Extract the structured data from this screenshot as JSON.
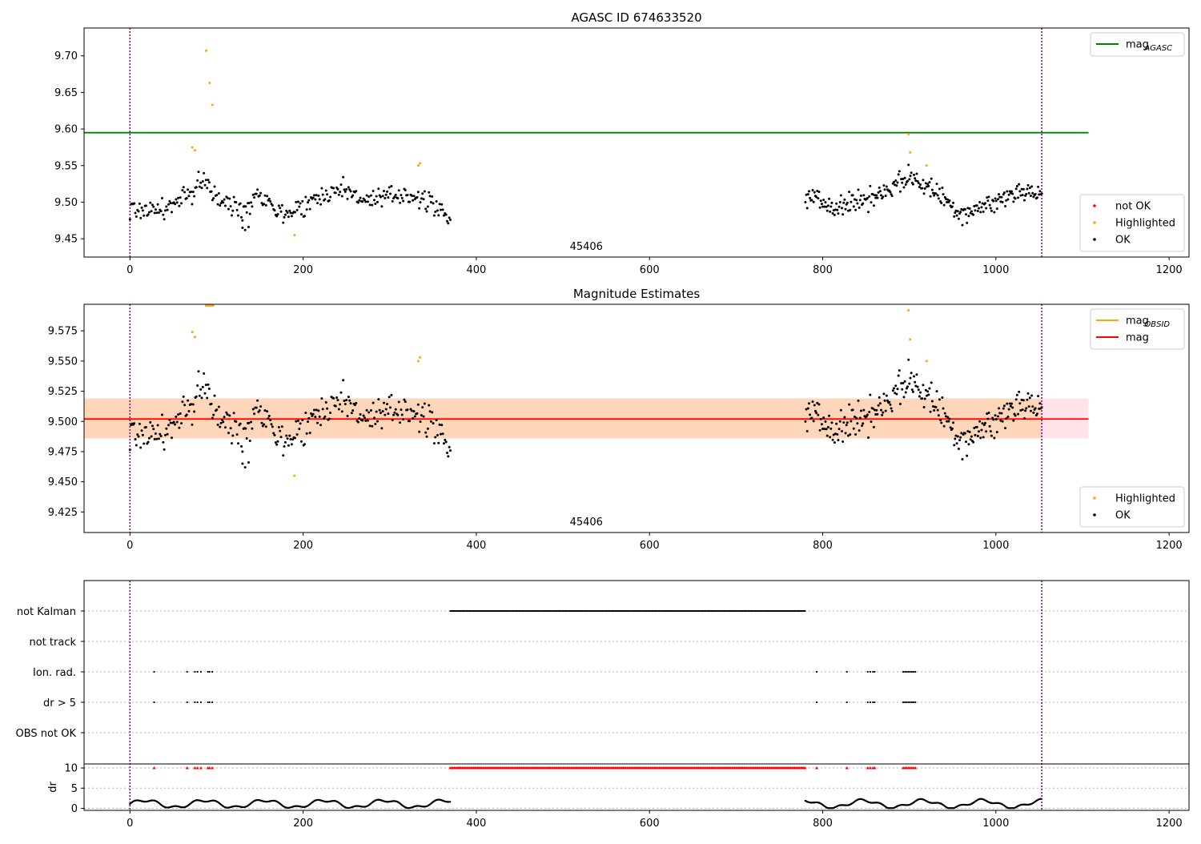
{
  "chart_data": [
    {
      "type": "scatter",
      "title": "AGASC ID 674633520",
      "xlim": [
        -53,
        1223
      ],
      "ylim": [
        9.425,
        9.738
      ],
      "xticks": [
        0,
        200,
        400,
        600,
        800,
        1000,
        1200
      ],
      "yticks": [
        9.45,
        9.5,
        9.55,
        9.6,
        9.65,
        9.7
      ],
      "ytick_decimals": 2,
      "vlines": [
        0,
        1053
      ],
      "annotation": {
        "text": "45406",
        "x": 527
      },
      "series": [
        {
          "name": "mag_AGASC",
          "kind": "hline",
          "y": 9.595,
          "x0": -53,
          "x1": 1107,
          "color": "#008000"
        },
        {
          "name": "not OK",
          "kind": "points",
          "color": "#ff0000",
          "points": []
        },
        {
          "name": "Highlighted",
          "kind": "points",
          "color": "#ffa500",
          "points": [
            [
              88,
              9.707
            ],
            [
              92,
              9.663
            ],
            [
              95,
              9.633
            ],
            [
              72,
              9.575
            ],
            [
              75,
              9.571
            ],
            [
              333,
              9.55
            ],
            [
              335,
              9.553
            ],
            [
              190,
              9.455
            ],
            [
              899,
              9.593
            ],
            [
              901,
              9.568
            ],
            [
              920,
              9.55
            ]
          ]
        },
        {
          "name": "OK",
          "kind": "points",
          "color": "#000000",
          "segments": [
            {
              "x0": 0,
              "x1": 370,
              "n": 300,
              "anchors": [
                [
                  0,
                  9.49
                ],
                [
                  40,
                  9.49
                ],
                [
                  70,
                  9.51
                ],
                [
                  85,
                  9.535
                ],
                [
                  100,
                  9.503
                ],
                [
                  130,
                  9.49
                ],
                [
                  150,
                  9.515
                ],
                [
                  175,
                  9.483
                ],
                [
                  200,
                  9.495
                ],
                [
                  240,
                  9.52
                ],
                [
                  280,
                  9.5
                ],
                [
                  320,
                  9.513
                ],
                [
                  350,
                  9.495
                ],
                [
                  370,
                  9.483
                ]
              ],
              "spread": 0.011
            },
            {
              "x0": 780,
              "x1": 1053,
              "n": 260,
              "anchors": [
                [
                  780,
                  9.505
                ],
                [
                  820,
                  9.495
                ],
                [
                  860,
                  9.508
                ],
                [
                  900,
                  9.535
                ],
                [
                  930,
                  9.515
                ],
                [
                  960,
                  9.485
                ],
                [
                  1000,
                  9.5
                ],
                [
                  1030,
                  9.517
                ],
                [
                  1053,
                  9.51
                ]
              ],
              "spread": 0.011
            }
          ],
          "extra": [
            [
              130,
              9.465
            ],
            [
              133,
              9.462
            ],
            [
              137,
              9.466
            ]
          ]
        }
      ],
      "legends": [
        {
          "position": "top-right",
          "entries": [
            {
              "label": "mag",
              "sub": "AGASC",
              "kind": "line",
              "color": "#008000"
            }
          ]
        },
        {
          "position": "bottom-right",
          "entries": [
            {
              "label": "not OK",
              "kind": "point",
              "color": "#ff0000"
            },
            {
              "label": "Highlighted",
              "kind": "point",
              "color": "#ffa500"
            },
            {
              "label": "OK",
              "kind": "point",
              "color": "#000000"
            }
          ]
        }
      ]
    },
    {
      "type": "scatter",
      "title": "Magnitude Estimates",
      "xlim": [
        -53,
        1223
      ],
      "ylim": [
        9.408,
        9.597
      ],
      "xticks": [
        0,
        200,
        400,
        600,
        800,
        1000,
        1200
      ],
      "yticks": [
        9.425,
        9.45,
        9.475,
        9.5,
        9.525,
        9.55,
        9.575
      ],
      "ytick_decimals": 3,
      "vlines": [
        0,
        1053
      ],
      "annotation": {
        "text": "45406",
        "x": 527
      },
      "bands": [
        {
          "x0": -53,
          "x1": 1107,
          "y0": 9.486,
          "y1": 9.519,
          "color": "#ffc0cb",
          "opacity": 0.45
        },
        {
          "x0": -53,
          "x1": 1053,
          "y0": 9.486,
          "y1": 9.519,
          "color": "#ffa500",
          "opacity": 0.2
        }
      ],
      "series": [
        {
          "name": "mag_OBSID",
          "kind": "hline",
          "y": 9.502,
          "x0": -53,
          "x1": 1053,
          "color": "#ffa500"
        },
        {
          "name": "mag",
          "kind": "hline",
          "y": 9.502,
          "x0": -53,
          "x1": 1107,
          "color": "#ff0000"
        },
        {
          "name": "Highlighted",
          "kind": "points",
          "color": "#ffa500",
          "points": [
            [
              88,
              9.596
            ],
            [
              90,
              9.596
            ],
            [
              92,
              9.596
            ],
            [
              94,
              9.596
            ],
            [
              96,
              9.596
            ],
            [
              72,
              9.574
            ],
            [
              75,
              9.57
            ],
            [
              333,
              9.55
            ],
            [
              335,
              9.553
            ],
            [
              190,
              9.455
            ],
            [
              899,
              9.592
            ],
            [
              901,
              9.568
            ],
            [
              920,
              9.55
            ]
          ]
        },
        {
          "name": "OK",
          "kind": "points",
          "color": "#000000",
          "segments": [
            {
              "x0": 0,
              "x1": 370,
              "n": 300,
              "anchors": [
                [
                  0,
                  9.49
                ],
                [
                  40,
                  9.49
                ],
                [
                  70,
                  9.51
                ],
                [
                  85,
                  9.535
                ],
                [
                  100,
                  9.503
                ],
                [
                  130,
                  9.49
                ],
                [
                  150,
                  9.515
                ],
                [
                  175,
                  9.483
                ],
                [
                  200,
                  9.495
                ],
                [
                  240,
                  9.52
                ],
                [
                  280,
                  9.5
                ],
                [
                  320,
                  9.513
                ],
                [
                  350,
                  9.495
                ],
                [
                  370,
                  9.483
                ]
              ],
              "spread": 0.011
            },
            {
              "x0": 780,
              "x1": 1053,
              "n": 260,
              "anchors": [
                [
                  780,
                  9.505
                ],
                [
                  820,
                  9.495
                ],
                [
                  860,
                  9.508
                ],
                [
                  900,
                  9.535
                ],
                [
                  930,
                  9.515
                ],
                [
                  960,
                  9.485
                ],
                [
                  1000,
                  9.5
                ],
                [
                  1030,
                  9.517
                ],
                [
                  1053,
                  9.51
                ]
              ],
              "spread": 0.011
            }
          ],
          "extra": [
            [
              130,
              9.465
            ],
            [
              133,
              9.462
            ],
            [
              137,
              9.466
            ]
          ]
        }
      ],
      "legends": [
        {
          "position": "top-right",
          "entries": [
            {
              "label": "mag",
              "sub": "OBSID",
              "kind": "line",
              "color": "#ffa500"
            },
            {
              "label": "mag",
              "kind": "line",
              "color": "#ff0000"
            }
          ]
        },
        {
          "position": "bottom-right",
          "entries": [
            {
              "label": "Highlighted",
              "kind": "point",
              "color": "#ffa500"
            },
            {
              "label": "OK",
              "kind": "point",
              "color": "#000000"
            }
          ]
        }
      ]
    },
    {
      "type": "scatter",
      "title": "",
      "xlim": [
        -53,
        1223
      ],
      "xticks": [
        0,
        200,
        400,
        600,
        800,
        1000,
        1200
      ],
      "vlines": [
        0,
        1053
      ],
      "flag_rows": [
        {
          "label": "not Kalman",
          "ranges": [
            [
              370,
              780
            ]
          ],
          "points": []
        },
        {
          "label": "not track",
          "ranges": [],
          "points": []
        },
        {
          "label": "Ion. rad.",
          "ranges": [],
          "points": [
            28,
            66,
            75,
            78,
            82,
            90,
            92,
            95,
            793,
            828,
            852,
            855,
            858,
            860,
            893,
            895,
            897,
            899,
            901,
            903,
            905,
            907
          ]
        },
        {
          "label": "dr > 5",
          "ranges": [],
          "points": [
            28,
            66,
            75,
            78,
            82,
            90,
            92,
            95,
            793,
            828,
            852,
            855,
            858,
            860,
            893,
            895,
            897,
            899,
            901,
            903,
            905,
            907
          ]
        },
        {
          "label": "OBS not OK",
          "ranges": [],
          "points": []
        }
      ],
      "dr_panel": {
        "ylabel": "dr",
        "yticks": [
          0,
          5,
          10
        ],
        "ylim": [
          -0.5,
          11
        ],
        "clip_value": 10,
        "clip_color": "#ff0000",
        "clip_ranges": [
          [
            370,
            780
          ]
        ],
        "clip_points": [
          28,
          66,
          75,
          78,
          82,
          90,
          92,
          95,
          793,
          828,
          852,
          855,
          858,
          860,
          893,
          895,
          897,
          899,
          901,
          903,
          905,
          907
        ],
        "segments": [
          [
            0,
            370
          ],
          [
            780,
            1053
          ]
        ]
      }
    }
  ]
}
